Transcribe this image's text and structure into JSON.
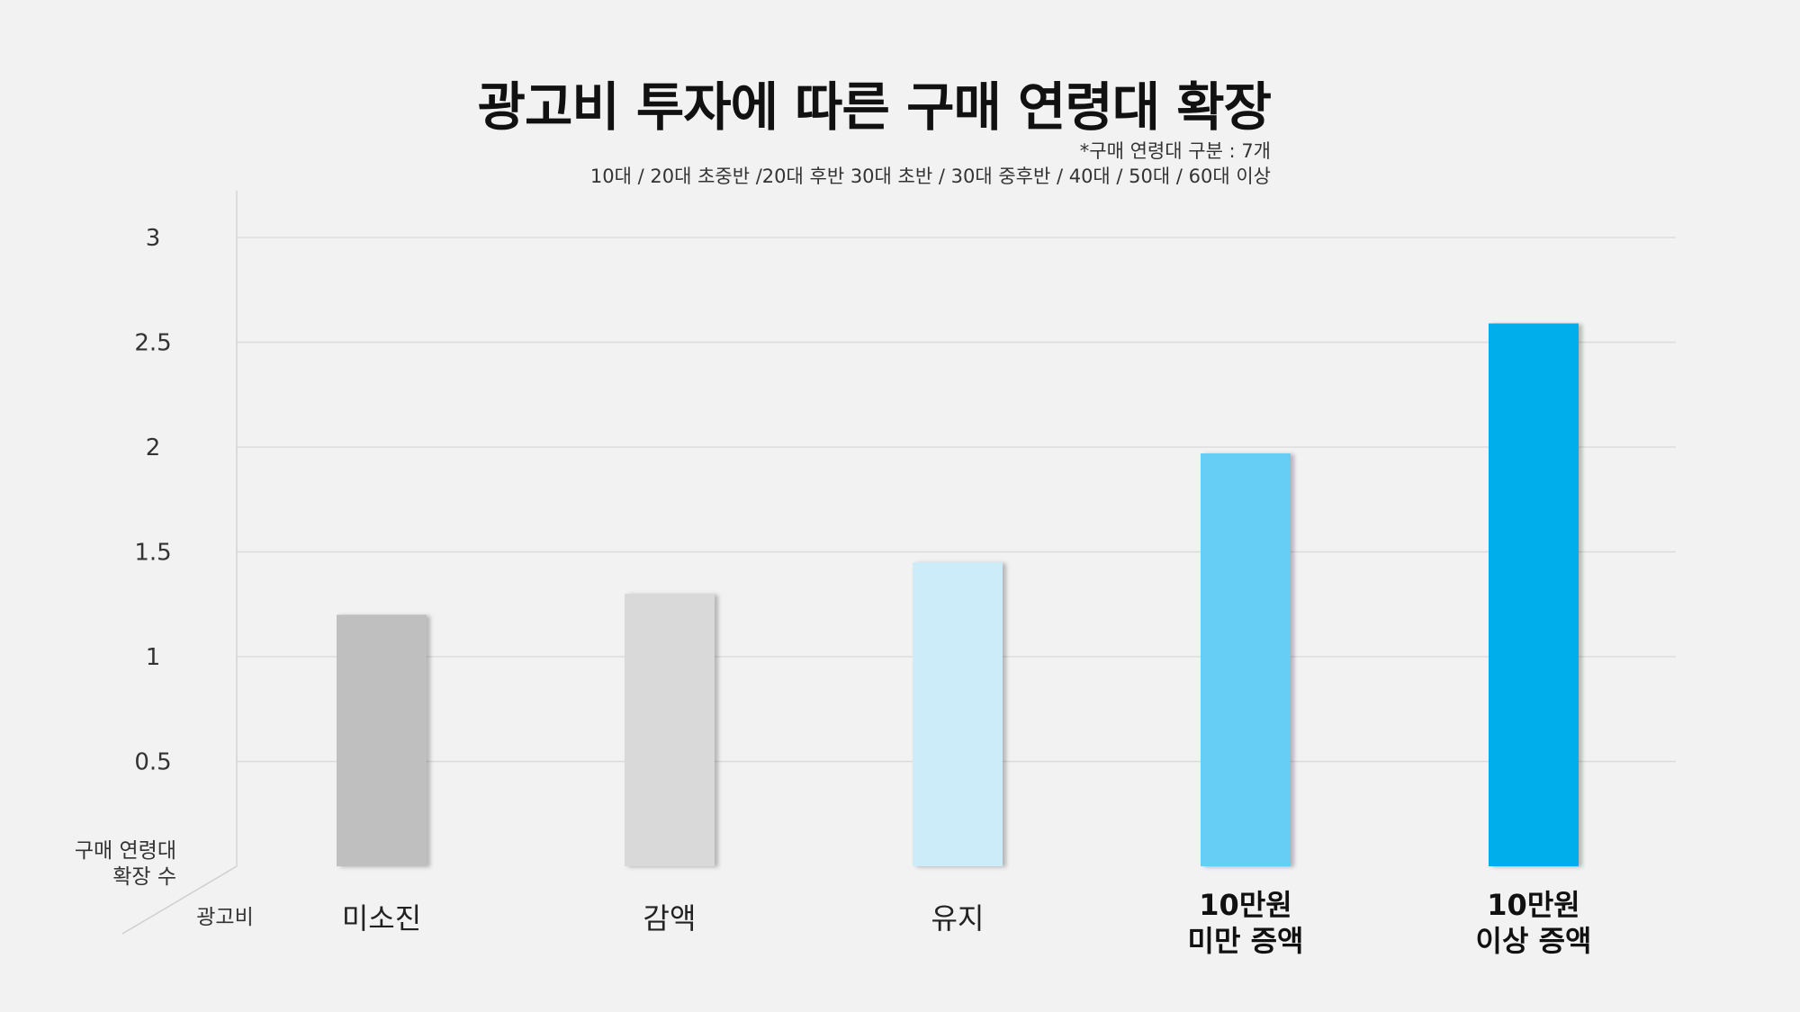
{
  "title": "광고비 투자에 따른 구매 연령대 확장",
  "note_line1": "*구매 연령대 구분 : 7개",
  "note_line2": "10대 / 20대 초중반 /20대 후반 30대 초반 / 30대 중후반 / 40대 / 50대 / 60대 이상",
  "chart_data": {
    "type": "bar",
    "title": "광고비 투자에 따른 구매 연령대 확장",
    "xlabel": "광고비",
    "ylabel": "구매 연령대 확장 수",
    "ylabel_lines": [
      "구매 연령대",
      "확장 수"
    ],
    "categories": [
      "미소진",
      "감액",
      "유지",
      "10만원 미만 증액",
      "10만원 이상 증액"
    ],
    "category_lines": [
      [
        "미소진"
      ],
      [
        "감액"
      ],
      [
        "유지"
      ],
      [
        "10만원",
        "미만 증액"
      ],
      [
        "10만원",
        "이상 증액"
      ]
    ],
    "category_bold": [
      false,
      false,
      false,
      true,
      true
    ],
    "values": [
      1.2,
      1.3,
      1.45,
      1.97,
      2.59
    ],
    "colors": [
      "#bfbfbf",
      "#d9d9d9",
      "#ccecfa",
      "#66cdf5",
      "#00aeeb"
    ],
    "yticks": [
      "0.5",
      "1",
      "1.5",
      "2",
      "2.5",
      "3"
    ],
    "ylim": [
      0,
      3
    ],
    "grid": true,
    "legend": "none"
  }
}
